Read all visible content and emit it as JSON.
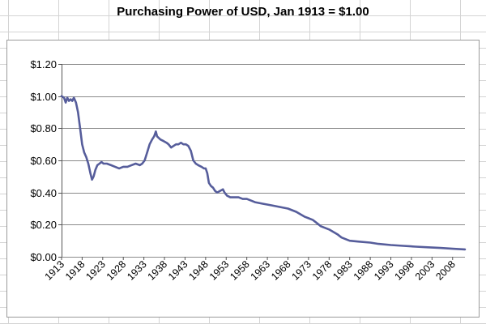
{
  "colors": {
    "line": "#565d9b",
    "grid": "#8a8a8a",
    "sheet_grid": "#d4d4d4"
  },
  "chart_data": {
    "type": "line",
    "title": "Purchasing Power of USD, Jan 1913 = $1.00",
    "xlabel": "",
    "ylabel": "",
    "ylim": [
      0,
      1.2
    ],
    "xlim": [
      1913,
      2011
    ],
    "grid": true,
    "y_ticks": [
      "$0.00",
      "$0.20",
      "$0.40",
      "$0.60",
      "$0.80",
      "$1.00",
      "$1.20"
    ],
    "y_tick_values": [
      0,
      0.2,
      0.4,
      0.6,
      0.8,
      1.0,
      1.2
    ],
    "x_ticks": [
      "1913",
      "1918",
      "1923",
      "1928",
      "1933",
      "1938",
      "1943",
      "1948",
      "1953",
      "1958",
      "1963",
      "1968",
      "1973",
      "1978",
      "1983",
      "1988",
      "1993",
      "1998",
      "2003",
      "2008"
    ],
    "series": [
      {
        "values": [
          [
            1913.0,
            1.0
          ],
          [
            1913.6,
            0.99
          ],
          [
            1914.0,
            0.96
          ],
          [
            1914.4,
            0.99
          ],
          [
            1914.8,
            0.97
          ],
          [
            1915.2,
            0.98
          ],
          [
            1915.6,
            0.97
          ],
          [
            1916.0,
            0.99
          ],
          [
            1916.5,
            0.96
          ],
          [
            1917.0,
            0.9
          ],
          [
            1917.5,
            0.8
          ],
          [
            1918.0,
            0.7
          ],
          [
            1918.5,
            0.65
          ],
          [
            1919.0,
            0.62
          ],
          [
            1919.5,
            0.58
          ],
          [
            1920.0,
            0.52
          ],
          [
            1920.4,
            0.48
          ],
          [
            1920.8,
            0.5
          ],
          [
            1921.2,
            0.54
          ],
          [
            1921.7,
            0.57
          ],
          [
            1922.2,
            0.58
          ],
          [
            1922.7,
            0.59
          ],
          [
            1923.2,
            0.58
          ],
          [
            1924.0,
            0.58
          ],
          [
            1925.0,
            0.57
          ],
          [
            1926.0,
            0.56
          ],
          [
            1927.0,
            0.55
          ],
          [
            1928.0,
            0.56
          ],
          [
            1929.0,
            0.56
          ],
          [
            1930.0,
            0.57
          ],
          [
            1931.0,
            0.58
          ],
          [
            1932.0,
            0.57
          ],
          [
            1932.6,
            0.58
          ],
          [
            1933.2,
            0.6
          ],
          [
            1933.8,
            0.65
          ],
          [
            1934.4,
            0.7
          ],
          [
            1935.0,
            0.73
          ],
          [
            1935.5,
            0.75
          ],
          [
            1935.9,
            0.78
          ],
          [
            1936.2,
            0.75
          ],
          [
            1937.0,
            0.73
          ],
          [
            1937.8,
            0.72
          ],
          [
            1938.5,
            0.71
          ],
          [
            1939.0,
            0.7
          ],
          [
            1939.6,
            0.68
          ],
          [
            1940.2,
            0.69
          ],
          [
            1940.8,
            0.7
          ],
          [
            1941.4,
            0.7
          ],
          [
            1942.0,
            0.71
          ],
          [
            1942.6,
            0.7
          ],
          [
            1943.2,
            0.7
          ],
          [
            1943.8,
            0.69
          ],
          [
            1944.4,
            0.66
          ],
          [
            1945.0,
            0.6
          ],
          [
            1945.6,
            0.58
          ],
          [
            1946.2,
            0.57
          ],
          [
            1947.0,
            0.56
          ],
          [
            1947.6,
            0.55
          ],
          [
            1948.0,
            0.55
          ],
          [
            1948.4,
            0.52
          ],
          [
            1948.8,
            0.46
          ],
          [
            1949.3,
            0.44
          ],
          [
            1949.8,
            0.43
          ],
          [
            1950.3,
            0.41
          ],
          [
            1950.8,
            0.4
          ],
          [
            1951.5,
            0.41
          ],
          [
            1952.2,
            0.42
          ],
          [
            1952.6,
            0.4
          ],
          [
            1953.2,
            0.38
          ],
          [
            1954.0,
            0.37
          ],
          [
            1955.0,
            0.37
          ],
          [
            1956.0,
            0.37
          ],
          [
            1957.0,
            0.36
          ],
          [
            1958.0,
            0.36
          ],
          [
            1959.0,
            0.35
          ],
          [
            1960.0,
            0.34
          ],
          [
            1962.0,
            0.33
          ],
          [
            1964.0,
            0.32
          ],
          [
            1966.0,
            0.31
          ],
          [
            1968.0,
            0.3
          ],
          [
            1970.0,
            0.28
          ],
          [
            1972.0,
            0.25
          ],
          [
            1974.0,
            0.23
          ],
          [
            1975.0,
            0.21
          ],
          [
            1976.0,
            0.19
          ],
          [
            1978.0,
            0.17
          ],
          [
            1980.0,
            0.14
          ],
          [
            1981.0,
            0.12
          ],
          [
            1982.0,
            0.11
          ],
          [
            1983.0,
            0.1
          ],
          [
            1985.0,
            0.095
          ],
          [
            1988.0,
            0.088
          ],
          [
            1990.0,
            0.08
          ],
          [
            1993.0,
            0.073
          ],
          [
            1996.0,
            0.068
          ],
          [
            1999.0,
            0.063
          ],
          [
            2002.0,
            0.059
          ],
          [
            2005.0,
            0.055
          ],
          [
            2008.0,
            0.05
          ],
          [
            2011.0,
            0.046
          ]
        ]
      }
    ]
  }
}
